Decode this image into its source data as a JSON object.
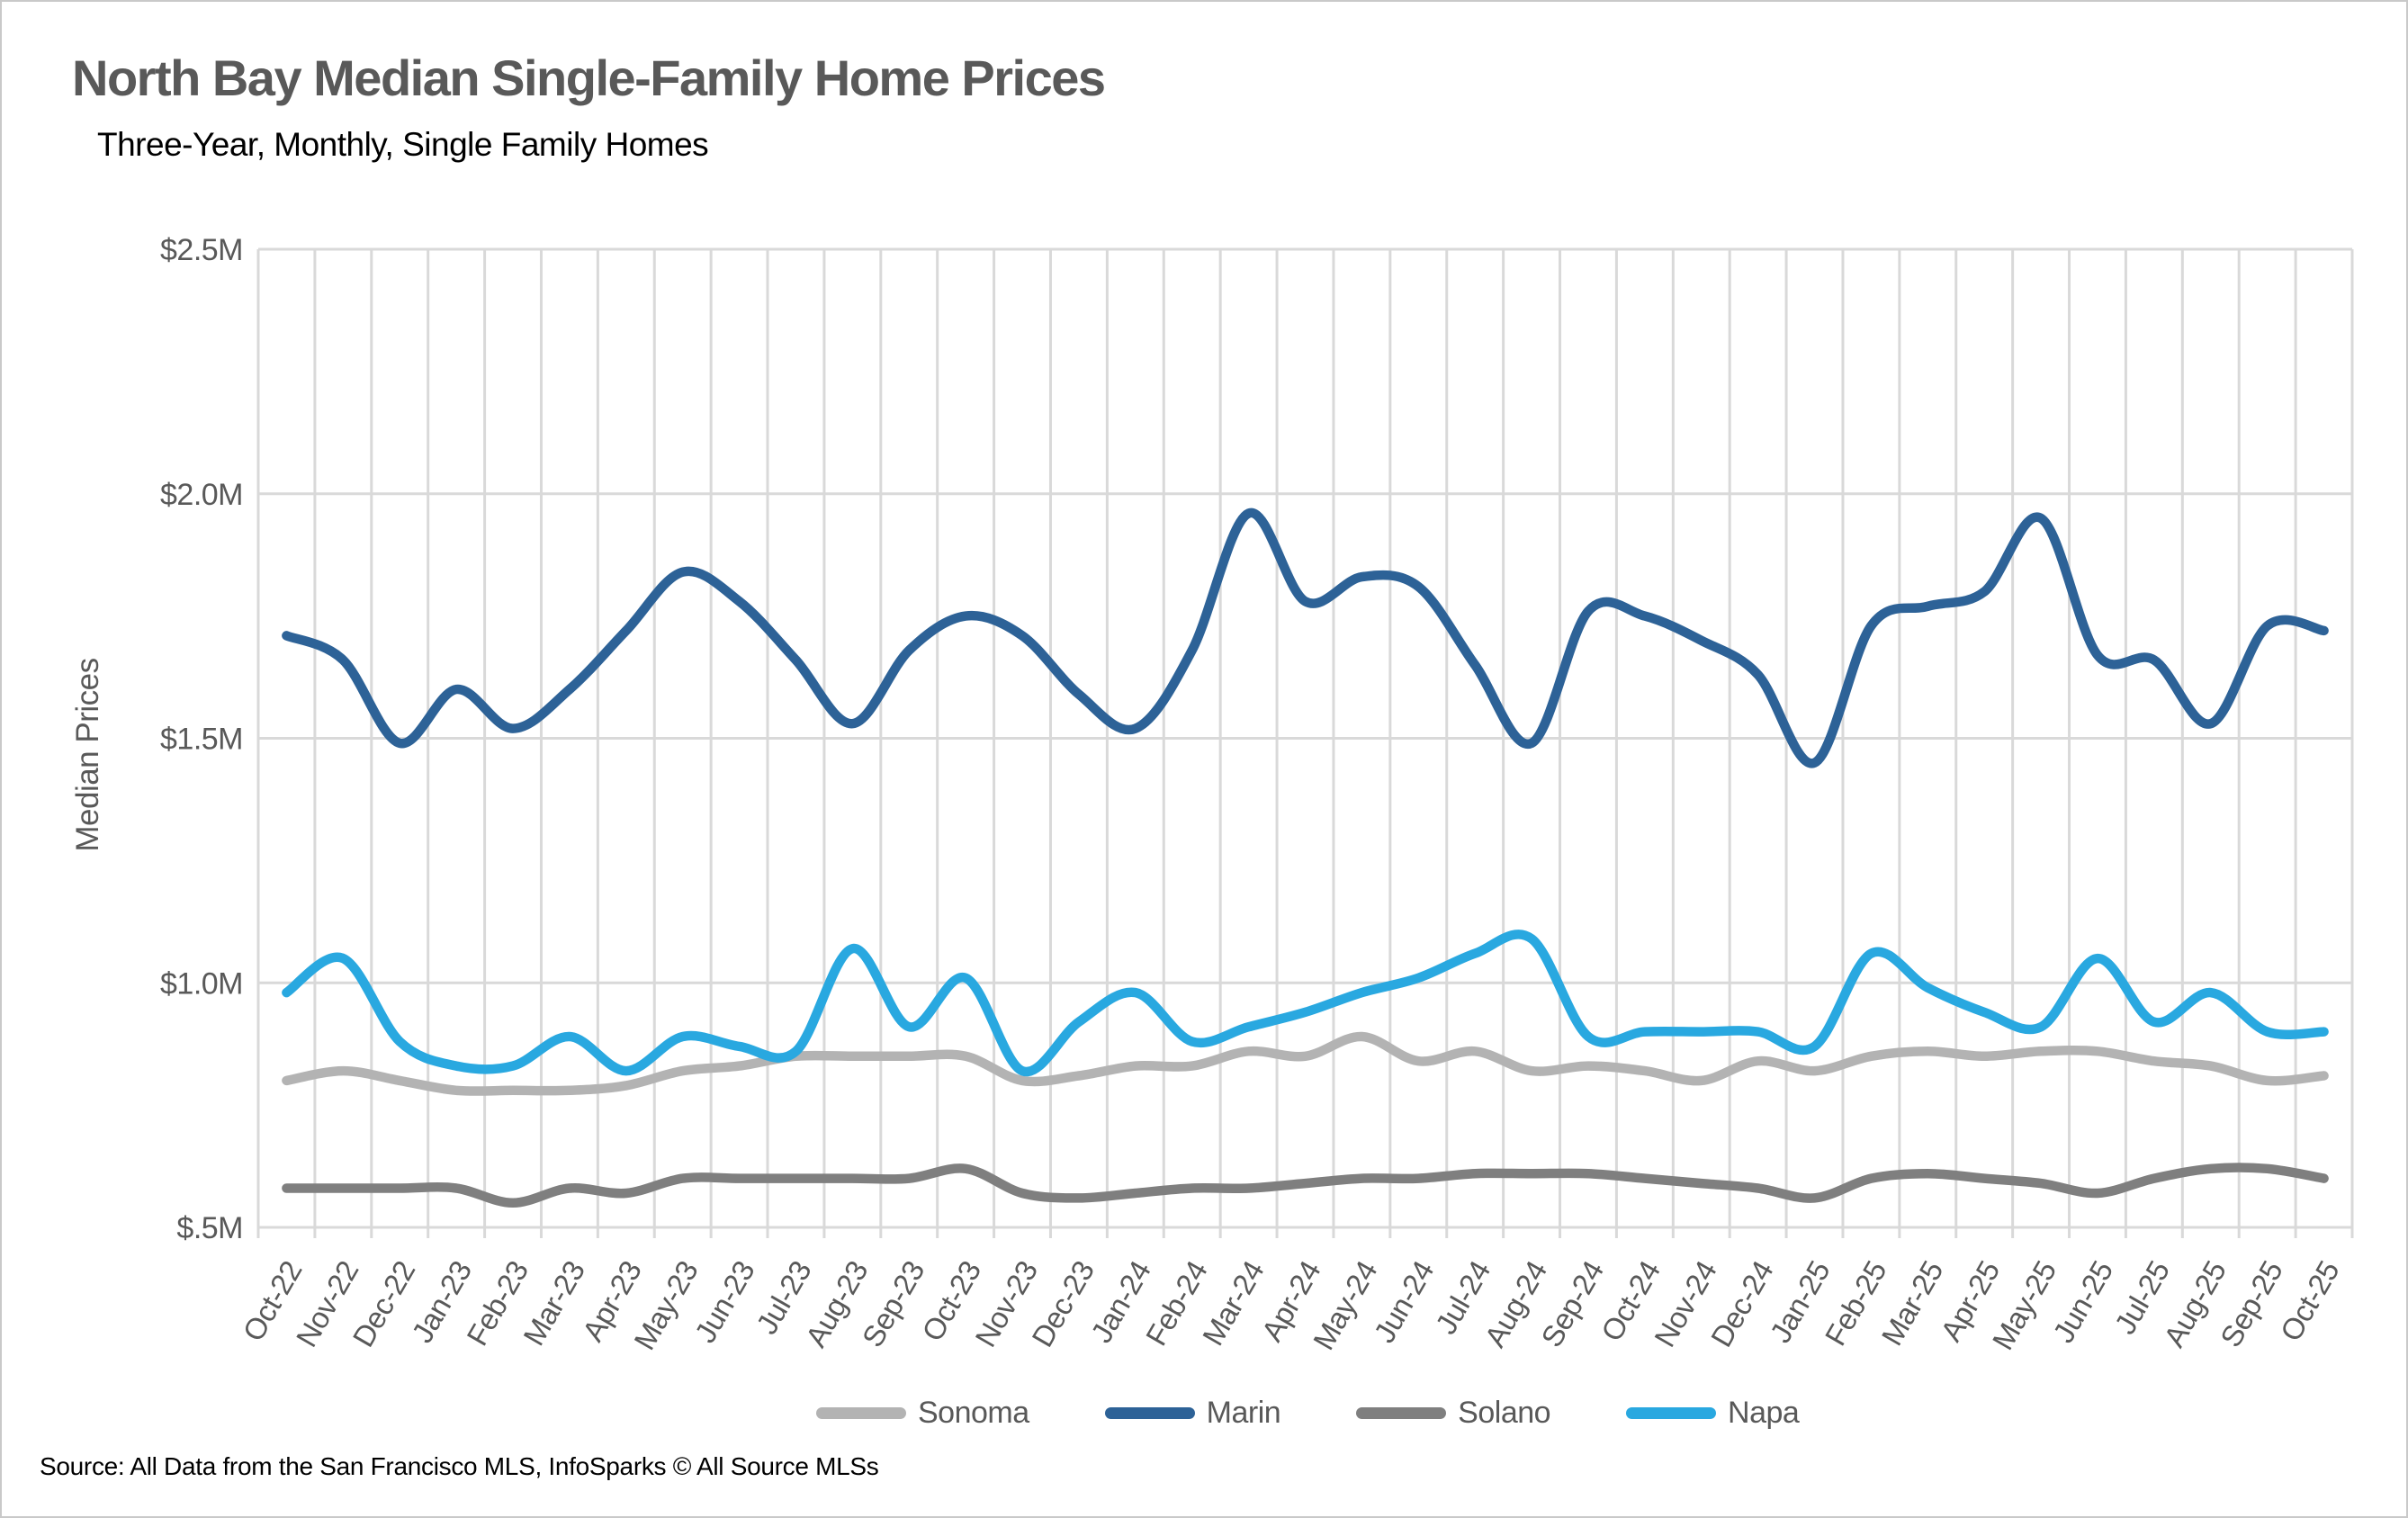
{
  "source": "Source: All Data from the San Francisco MLS, InfoSparks © All Source MLSs",
  "colors": {
    "grid": "#d9d9d9",
    "axis_text": "#595959",
    "title_text": "#595959",
    "subtitle_text": "#000000",
    "source_text": "#000000"
  },
  "chart_data": {
    "type": "line",
    "title": "North Bay Median Single-Family Home Prices",
    "subtitle": "Three-Year, Monthly, Single Family Homes",
    "ylabel": "Median Prices",
    "xlabel": "",
    "ylim": [
      0.5,
      2.5
    ],
    "y_ticks": [
      {
        "label": "$2.5M",
        "value": 2.5
      },
      {
        "label": "$2.0M",
        "value": 2.0
      },
      {
        "label": "$1.5M",
        "value": 1.5
      },
      {
        "label": "$1.0M",
        "value": 1.0
      },
      {
        "label": "$.5M",
        "value": 0.5
      }
    ],
    "grid": true,
    "legend_position": "bottom",
    "x": [
      "Oct-22",
      "Nov-22",
      "Dec-22",
      "Jan-23",
      "Feb-23",
      "Mar-23",
      "Apr-23",
      "May-23",
      "Jun-23",
      "Jul-23",
      "Aug-23",
      "Sep-23",
      "Oct-23",
      "Nov-23",
      "Dec-23",
      "Jan-24",
      "Feb-24",
      "Mar-24",
      "Apr-24",
      "May-24",
      "Jun-24",
      "Jul-24",
      "Aug-24",
      "Sep-24",
      "Oct-24",
      "Nov-24",
      "Dec-24",
      "Jan-25",
      "Feb-25",
      "Mar-25",
      "Apr-25",
      "May-25",
      "Jun-25",
      "Jul-25",
      "Aug-25",
      "Sep-25",
      "Oct-25"
    ],
    "series": [
      {
        "name": "Sonoma",
        "color": "#b3b3b3",
        "values": [
          0.8,
          0.82,
          0.8,
          0.78,
          0.78,
          0.78,
          0.79,
          0.82,
          0.83,
          0.85,
          0.85,
          0.85,
          0.85,
          0.8,
          0.81,
          0.83,
          0.83,
          0.86,
          0.85,
          0.89,
          0.84,
          0.86,
          0.82,
          0.83,
          0.82,
          0.8,
          0.84,
          0.82,
          0.85,
          0.86,
          0.85,
          0.86,
          0.86,
          0.84,
          0.83,
          0.8,
          0.81
        ]
      },
      {
        "name": "Marin",
        "color": "#2d6297",
        "values": [
          1.71,
          1.66,
          1.49,
          1.6,
          1.52,
          1.6,
          1.72,
          1.84,
          1.78,
          1.66,
          1.53,
          1.68,
          1.75,
          1.71,
          1.59,
          1.52,
          1.68,
          1.96,
          1.78,
          1.83,
          1.81,
          1.65,
          1.49,
          1.76,
          1.75,
          1.7,
          1.63,
          1.45,
          1.73,
          1.77,
          1.8,
          1.95,
          1.67,
          1.66,
          1.53,
          1.73,
          1.72
        ]
      },
      {
        "name": "Solano",
        "color": "#7f7f7f",
        "values": [
          0.58,
          0.58,
          0.58,
          0.58,
          0.55,
          0.58,
          0.57,
          0.6,
          0.6,
          0.6,
          0.6,
          0.6,
          0.62,
          0.57,
          0.56,
          0.57,
          0.58,
          0.58,
          0.59,
          0.6,
          0.6,
          0.61,
          0.61,
          0.61,
          0.6,
          0.59,
          0.58,
          0.56,
          0.6,
          0.61,
          0.6,
          0.59,
          0.57,
          0.6,
          0.62,
          0.62,
          0.6
        ]
      },
      {
        "name": "Napa",
        "color": "#29a8e0",
        "values": [
          0.98,
          1.05,
          0.88,
          0.83,
          0.83,
          0.89,
          0.82,
          0.89,
          0.87,
          0.86,
          1.07,
          0.91,
          1.01,
          0.82,
          0.92,
          0.98,
          0.88,
          0.91,
          0.94,
          0.98,
          1.01,
          1.06,
          1.09,
          0.89,
          0.9,
          0.9,
          0.9,
          0.87,
          1.06,
          0.99,
          0.94,
          0.91,
          1.05,
          0.92,
          0.98,
          0.9,
          0.9
        ]
      }
    ]
  }
}
